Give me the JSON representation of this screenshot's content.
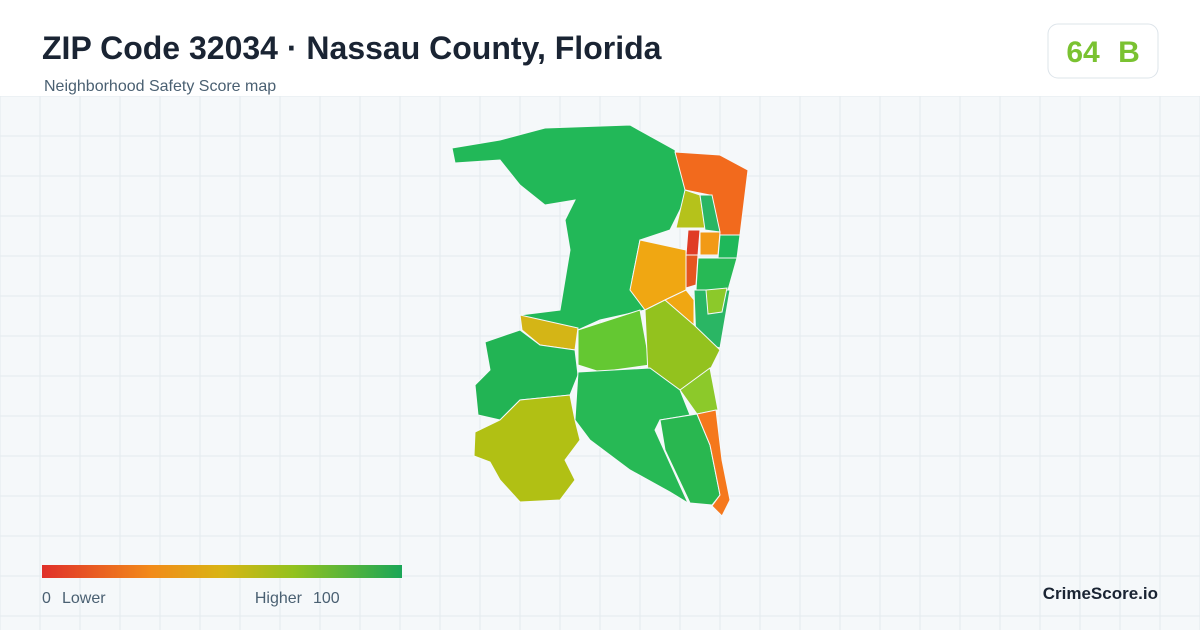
{
  "header": {
    "title": "ZIP Code 32034 · Nassau County, Florida",
    "subtitle": "Neighborhood Safety Score map"
  },
  "score": {
    "value": 64,
    "grade": "B"
  },
  "legend": {
    "min": 0,
    "min_label": "Lower",
    "max_label": "Higher",
    "max": 100
  },
  "brand": "CrimeScore.io"
}
